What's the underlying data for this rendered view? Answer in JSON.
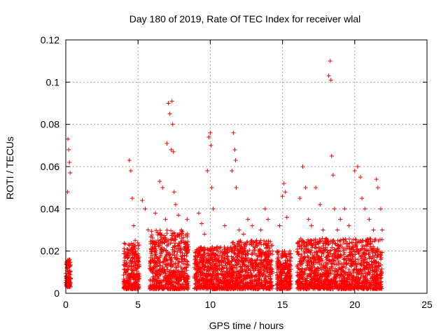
{
  "chart_data": {
    "type": "scatter",
    "title": "Day 180 of 2019, Rate Of TEC Index for receiver wlal",
    "xlabel": "GPS time / hours",
    "ylabel": "ROTI / TECUs",
    "xlim": [
      0,
      25
    ],
    "ylim": [
      0,
      0.12
    ],
    "x_ticks": [
      0,
      5,
      10,
      15,
      20,
      25
    ],
    "x_tick_labels": [
      "0",
      "5",
      "10",
      "15",
      "20",
      "25"
    ],
    "y_ticks": [
      0,
      0.02,
      0.04,
      0.06,
      0.08,
      0.1,
      0.12
    ],
    "y_tick_labels": [
      "0",
      "0.02",
      "0.04",
      "0.06",
      "0.08",
      "0.1",
      "0.12"
    ],
    "grid": true,
    "marker": "+",
    "series": [
      {
        "name": "ROTI",
        "color": "#ff0000",
        "points": [
          [
            0.05,
            0.004
          ],
          [
            0.1,
            0.012
          ],
          [
            0.15,
            0.073
          ],
          [
            0.2,
            0.068
          ],
          [
            0.25,
            0.062
          ],
          [
            0.3,
            0.057
          ],
          [
            0.12,
            0.048
          ],
          [
            0.18,
            0.009
          ],
          [
            0.22,
            0.015
          ],
          [
            0.08,
            0.006
          ],
          [
            4.2,
            0.005
          ],
          [
            4.3,
            0.018
          ],
          [
            4.4,
            0.063
          ],
          [
            4.5,
            0.058
          ],
          [
            4.6,
            0.045
          ],
          [
            4.7,
            0.032
          ],
          [
            4.8,
            0.025
          ],
          [
            4.9,
            0.012
          ],
          [
            5.1,
            0.008
          ],
          [
            5.3,
            0.044
          ],
          [
            5.5,
            0.04
          ],
          [
            5.7,
            0.03
          ],
          [
            5.9,
            0.015
          ],
          [
            6.2,
            0.038
          ],
          [
            6.5,
            0.053
          ],
          [
            6.7,
            0.05
          ],
          [
            6.9,
            0.035
          ],
          [
            7.0,
            0.071
          ],
          [
            7.1,
            0.09
          ],
          [
            7.2,
            0.085
          ],
          [
            7.3,
            0.068
          ],
          [
            7.35,
            0.091
          ],
          [
            7.4,
            0.08
          ],
          [
            7.45,
            0.067
          ],
          [
            7.5,
            0.048
          ],
          [
            7.6,
            0.042
          ],
          [
            7.8,
            0.037
          ],
          [
            8.0,
            0.03
          ],
          [
            8.2,
            0.024
          ],
          [
            8.4,
            0.035
          ],
          [
            9.2,
            0.038
          ],
          [
            9.4,
            0.033
          ],
          [
            9.6,
            0.028
          ],
          [
            9.8,
            0.058
          ],
          [
            9.9,
            0.074
          ],
          [
            10.0,
            0.076
          ],
          [
            10.05,
            0.07
          ],
          [
            10.1,
            0.05
          ],
          [
            10.2,
            0.04
          ],
          [
            10.5,
            0.018
          ],
          [
            10.8,
            0.012
          ],
          [
            11.0,
            0.032
          ],
          [
            11.2,
            0.02
          ],
          [
            11.5,
            0.058
          ],
          [
            11.6,
            0.076
          ],
          [
            11.7,
            0.068
          ],
          [
            11.75,
            0.063
          ],
          [
            11.8,
            0.05
          ],
          [
            12.0,
            0.03
          ],
          [
            12.3,
            0.028
          ],
          [
            12.6,
            0.035
          ],
          [
            12.9,
            0.032
          ],
          [
            13.2,
            0.025
          ],
          [
            13.5,
            0.03
          ],
          [
            13.8,
            0.04
          ],
          [
            14.0,
            0.035
          ],
          [
            14.3,
            0.02
          ],
          [
            14.8,
            0.032
          ],
          [
            15.0,
            0.046
          ],
          [
            15.1,
            0.052
          ],
          [
            15.2,
            0.048
          ],
          [
            15.3,
            0.036
          ],
          [
            15.5,
            0.02
          ],
          [
            16.2,
            0.045
          ],
          [
            16.4,
            0.06
          ],
          [
            16.6,
            0.05
          ],
          [
            16.8,
            0.035
          ],
          [
            17.0,
            0.032
          ],
          [
            17.3,
            0.05
          ],
          [
            17.6,
            0.042
          ],
          [
            17.8,
            0.03
          ],
          [
            18.2,
            0.103
          ],
          [
            18.3,
            0.11
          ],
          [
            18.35,
            0.101
          ],
          [
            18.4,
            0.065
          ],
          [
            18.5,
            0.056
          ],
          [
            18.6,
            0.04
          ],
          [
            18.8,
            0.03
          ],
          [
            19.0,
            0.035
          ],
          [
            19.3,
            0.04
          ],
          [
            19.6,
            0.032
          ],
          [
            20.0,
            0.058
          ],
          [
            20.2,
            0.06
          ],
          [
            20.4,
            0.055
          ],
          [
            20.5,
            0.045
          ],
          [
            20.7,
            0.04
          ],
          [
            21.0,
            0.035
          ],
          [
            21.3,
            0.03
          ],
          [
            21.5,
            0.054
          ],
          [
            21.6,
            0.05
          ],
          [
            21.8,
            0.04
          ],
          [
            21.9,
            0.03
          ]
        ],
        "dense_bands": [
          {
            "x_range": [
              0.0,
              0.35
            ],
            "y_range": [
              0.003,
              0.016
            ]
          },
          {
            "x_range": [
              4.0,
              5.1
            ],
            "y_range": [
              0.002,
              0.024
            ]
          },
          {
            "x_range": [
              5.8,
              8.5
            ],
            "y_range": [
              0.002,
              0.03
            ]
          },
          {
            "x_range": [
              8.9,
              11.3
            ],
            "y_range": [
              0.002,
              0.022
            ]
          },
          {
            "x_range": [
              11.3,
              14.3
            ],
            "y_range": [
              0.002,
              0.025
            ]
          },
          {
            "x_range": [
              14.6,
              15.6
            ],
            "y_range": [
              0.002,
              0.02
            ]
          },
          {
            "x_range": [
              16.0,
              21.9
            ],
            "y_range": [
              0.002,
              0.026
            ]
          }
        ]
      }
    ]
  }
}
